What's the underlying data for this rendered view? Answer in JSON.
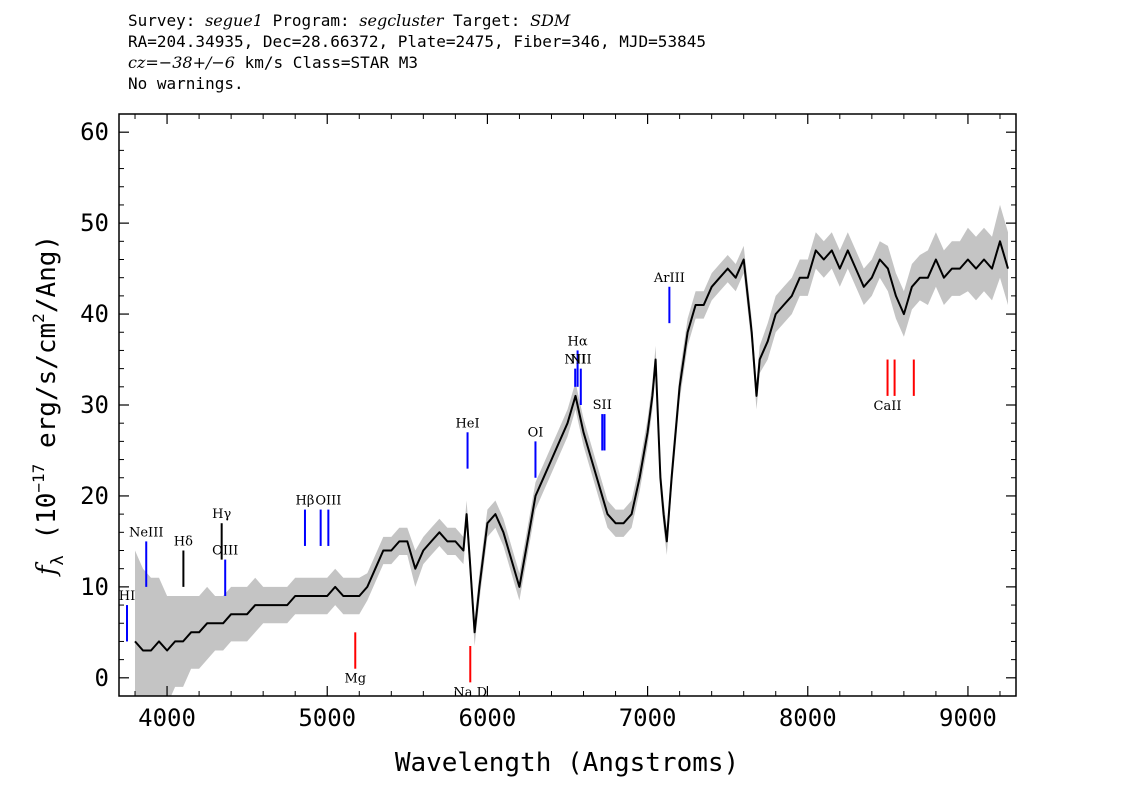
{
  "header": {
    "survey_label": "Survey:",
    "survey": "segue1",
    "program_label": "Program:",
    "program": "segcluster",
    "target_label": "Target:",
    "target": "SDM",
    "line2": "RA=204.34935, Dec=28.66372, Plate=2475, Fiber=346, MJD=53845",
    "cz_label": "cz=",
    "cz_value": "−38+/−6",
    "cz_rest": " km/s Class=STAR M3",
    "line4": "No warnings."
  },
  "chart_data": {
    "type": "line",
    "title": "",
    "xlabel": "Wavelength (Angstroms)",
    "ylabel": "fλ (10⁻¹⁷ erg/s/cm²/Ang)",
    "xlim": [
      3700,
      9300
    ],
    "ylim": [
      -2,
      62
    ],
    "x_ticks": [
      4000,
      5000,
      6000,
      7000,
      8000,
      9000
    ],
    "y_ticks": [
      0,
      10,
      20,
      30,
      40,
      50,
      60
    ],
    "grid": false,
    "colors": {
      "flux": "#000000",
      "error_band": "#c4c4c4",
      "emission_lines": "#0000ff",
      "absorption_lines": "#ff0000"
    },
    "series": [
      {
        "wavelength": [
          3800,
          3850,
          3900,
          3950,
          4000,
          4050,
          4100,
          4150,
          4200,
          4250,
          4300,
          4350,
          4400,
          4450,
          4500,
          4550,
          4600,
          4650,
          4700,
          4750,
          4800,
          4850,
          4900,
          4950,
          5000,
          5050,
          5100,
          5150,
          5200,
          5250,
          5300,
          5350,
          5400,
          5450,
          5500,
          5550,
          5600,
          5650,
          5700,
          5750,
          5800,
          5850,
          5870,
          5890,
          5920,
          5950,
          6000,
          6050,
          6100,
          6150,
          6200,
          6250,
          6300,
          6350,
          6400,
          6450,
          6500,
          6550,
          6600,
          6650,
          6700,
          6750,
          6800,
          6850,
          6900,
          6950,
          7000,
          7030,
          7050,
          7080,
          7100,
          7120,
          7150,
          7200,
          7250,
          7300,
          7350,
          7400,
          7450,
          7500,
          7550,
          7600,
          7650,
          7680,
          7700,
          7750,
          7800,
          7850,
          7900,
          7950,
          8000,
          8050,
          8100,
          8150,
          8200,
          8250,
          8300,
          8350,
          8400,
          8450,
          8500,
          8550,
          8600,
          8650,
          8700,
          8750,
          8800,
          8850,
          8900,
          8950,
          9000,
          9050,
          9100,
          9150,
          9200,
          9250
        ],
        "flux": [
          4,
          3,
          3,
          4,
          3,
          4,
          4,
          5,
          5,
          6,
          6,
          6,
          7,
          7,
          7,
          8,
          8,
          8,
          8,
          8,
          9,
          9,
          9,
          9,
          9,
          10,
          9,
          9,
          9,
          10,
          12,
          14,
          14,
          15,
          15,
          12,
          14,
          15,
          16,
          15,
          15,
          14,
          18,
          13,
          5,
          10,
          17,
          18,
          16,
          13,
          10,
          15,
          20,
          22,
          24,
          26,
          28,
          31,
          27,
          24,
          21,
          18,
          17,
          17,
          18,
          22,
          27,
          31,
          35,
          22,
          18,
          15,
          22,
          32,
          38,
          41,
          41,
          43,
          44,
          45,
          44,
          46,
          38,
          31,
          35,
          37,
          40,
          41,
          42,
          44,
          44,
          47,
          46,
          47,
          45,
          47,
          45,
          43,
          44,
          46,
          45,
          42,
          40,
          43,
          44,
          44,
          46,
          44,
          45,
          45,
          46,
          45,
          46,
          45,
          48,
          45
        ],
        "error_band_halfwidth": [
          10,
          9,
          8,
          7,
          6,
          5,
          5,
          4,
          4,
          4,
          3,
          3,
          3,
          3,
          3,
          3,
          2,
          2,
          2,
          2,
          2,
          2,
          2,
          2,
          2,
          2,
          2,
          2,
          2,
          1.5,
          1.5,
          1.5,
          1.5,
          1.5,
          1.5,
          2,
          1.5,
          1.5,
          1.5,
          1.5,
          1.5,
          1.5,
          1.5,
          1.5,
          1.5,
          1.5,
          1.5,
          1.5,
          1.5,
          1.5,
          1.5,
          1.5,
          1.5,
          1.5,
          1.5,
          1.5,
          1.5,
          1.5,
          1.5,
          1.5,
          1.5,
          1.5,
          1.5,
          1.5,
          1.5,
          1.5,
          1.5,
          1.5,
          1.5,
          1.5,
          1.5,
          1.5,
          1.5,
          1.5,
          1.5,
          1.5,
          1.5,
          1.5,
          1.5,
          1.5,
          1.5,
          1.5,
          1.5,
          1.5,
          1.5,
          2,
          2,
          2,
          2,
          2,
          2,
          2,
          2,
          2,
          2,
          2,
          2,
          2,
          2,
          2,
          2.5,
          2.5,
          2.5,
          2.5,
          2.5,
          3,
          3,
          3,
          3,
          3,
          3.5,
          3.5,
          3.5,
          3.5,
          4,
          4
        ]
      }
    ],
    "spectral_lines": [
      {
        "label": "HI",
        "x": 3750,
        "kind": "emission",
        "y0": 4,
        "y1": 8
      },
      {
        "label": "NeIII",
        "x": 3870,
        "kind": "emission",
        "y0": 10,
        "y1": 15
      },
      {
        "label": "Hδ",
        "x": 4102,
        "kind": "marker",
        "y0": 10,
        "y1": 14
      },
      {
        "label": "Hγ",
        "x": 4341,
        "kind": "marker",
        "y0": 13,
        "y1": 17
      },
      {
        "label": "OIII",
        "x": 4363,
        "kind": "emission",
        "y0": 9,
        "y1": 13
      },
      {
        "label": "Hβ",
        "x": 4861,
        "kind": "emission",
        "y0": 14.5,
        "y1": 18.5
      },
      {
        "label": "",
        "x": 4959,
        "kind": "emission",
        "y0": 14.5,
        "y1": 18.5
      },
      {
        "label": "OIII",
        "x": 5007,
        "kind": "emission",
        "y0": 14.5,
        "y1": 18.5
      },
      {
        "label": "Mg",
        "x": 5175,
        "kind": "absorption",
        "y0": 1,
        "y1": 5
      },
      {
        "label": "Na D",
        "x": 5893,
        "kind": "absorption",
        "y0": -0.5,
        "y1": 3.5
      },
      {
        "label": "HeI",
        "x": 5876,
        "kind": "emission",
        "y0": 23,
        "y1": 27
      },
      {
        "label": "OI",
        "x": 6300,
        "kind": "emission",
        "y0": 22,
        "y1": 26
      },
      {
        "label": "NII",
        "x": 6548,
        "kind": "emission",
        "y0": 32,
        "y1": 34
      },
      {
        "label": "Hα",
        "x": 6563,
        "kind": "emission",
        "y0": 32,
        "y1": 36
      },
      {
        "label": "NII",
        "x": 6583,
        "kind": "emission",
        "y0": 30,
        "y1": 34
      },
      {
        "label": "SII",
        "x": 6717,
        "kind": "emission",
        "y0": 25,
        "y1": 29
      },
      {
        "label": "",
        "x": 6731,
        "kind": "emission",
        "y0": 25,
        "y1": 29
      },
      {
        "label": "ArIII",
        "x": 7136,
        "kind": "emission",
        "y0": 39,
        "y1": 43
      },
      {
        "label": "CaII",
        "x": 8498,
        "kind": "absorption",
        "y0": 31,
        "y1": 35
      },
      {
        "label": "",
        "x": 8542,
        "kind": "absorption",
        "y0": 31,
        "y1": 35
      },
      {
        "label": "",
        "x": 8662,
        "kind": "absorption",
        "y0": 31,
        "y1": 35
      }
    ]
  }
}
